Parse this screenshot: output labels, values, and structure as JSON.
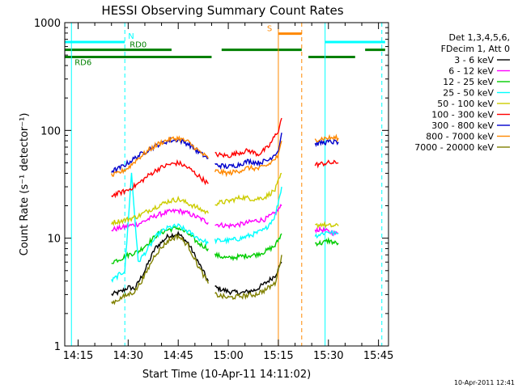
{
  "chart_data": {
    "type": "line",
    "title": "HESSI Observing Summary Count Rates",
    "xlabel": "Start Time (10-Apr-11 14:11:02)",
    "ylabel": "Count Rate (s⁻¹ detector⁻¹)",
    "x_scale": "time",
    "x_range": [
      "14:11",
      "15:48"
    ],
    "y_scale": "log",
    "ylim": [
      1,
      1000
    ],
    "x_ticks": [
      "14:15",
      "14:30",
      "14:45",
      "15:00",
      "15:15",
      "15:30",
      "15:45"
    ],
    "y_ticks": [
      "1",
      "10",
      "100",
      "1000"
    ],
    "timestamp": "10-Apr-2011 12:41",
    "legend": {
      "placement": "right",
      "header": [
        "Det 1,3,4,5,6,",
        "FDecim 1, Att 0"
      ]
    },
    "series": [
      {
        "name": "3 - 6 keV",
        "color": "#000000",
        "segments": [
          {
            "x": [
              "14:25",
              "14:28",
              "14:30",
              "14:32",
              "14:35",
              "14:38",
              "14:42",
              "14:45",
              "14:48",
              "14:51",
              "14:54"
            ],
            "y": [
              3,
              3.2,
              3.5,
              3.4,
              5,
              8,
              10.5,
              11,
              9,
              6,
              4
            ]
          },
          {
            "x": [
              "14:56",
              "15:00",
              "15:04",
              "15:08",
              "15:11",
              "15:14",
              "15:16"
            ],
            "y": [
              3.5,
              3.2,
              3.1,
              3.3,
              3.8,
              4.5,
              6
            ]
          }
        ]
      },
      {
        "name": "6 - 12 keV",
        "color": "#ff00ff",
        "segments": [
          {
            "x": [
              "14:25",
              "14:28",
              "14:30",
              "14:33",
              "14:36",
              "14:39",
              "14:42",
              "14:45",
              "14:48",
              "14:51",
              "14:54"
            ],
            "y": [
              12,
              12.5,
              13,
              13.5,
              15,
              16.5,
              17.5,
              18,
              17,
              15.5,
              14
            ]
          },
          {
            "x": [
              "14:56",
              "15:00",
              "15:04",
              "15:08",
              "15:11",
              "15:14",
              "15:16"
            ],
            "y": [
              13.5,
              13,
              13.5,
              14.5,
              15,
              17,
              20
            ]
          },
          {
            "x": [
              "15:26",
              "15:28",
              "15:30",
              "15:32",
              "15:33"
            ],
            "y": [
              12,
              12,
              11.5,
              11,
              11
            ]
          }
        ]
      },
      {
        "name": "12 - 25 keV",
        "color": "#00cc00",
        "segments": [
          {
            "x": [
              "14:25",
              "14:28",
              "14:30",
              "14:33",
              "14:36",
              "14:39",
              "14:42",
              "14:45",
              "14:48",
              "14:51",
              "14:54"
            ],
            "y": [
              6,
              6.5,
              7,
              7.5,
              9,
              11,
              12,
              12.5,
              11,
              9,
              8
            ]
          },
          {
            "x": [
              "14:56",
              "15:00",
              "15:04",
              "15:08",
              "15:11",
              "15:14",
              "15:16"
            ],
            "y": [
              7,
              6.5,
              6.8,
              7,
              7.5,
              8.5,
              11
            ]
          },
          {
            "x": [
              "15:26",
              "15:28",
              "15:30",
              "15:32",
              "15:33"
            ],
            "y": [
              9,
              9,
              9.5,
              9,
              9
            ]
          }
        ]
      },
      {
        "name": "25 - 50 keV",
        "color": "#00ffff",
        "segments": [
          {
            "x": [
              "14:25",
              "14:27",
              "14:29",
              "14:31",
              "14:33",
              "14:36",
              "14:39",
              "14:42",
              "14:45",
              "14:48",
              "14:51",
              "14:54"
            ],
            "y": [
              4,
              4.5,
              5,
              40,
              6,
              8,
              11,
              12.5,
              13,
              11.5,
              10,
              9
            ]
          },
          {
            "x": [
              "14:56",
              "15:00",
              "15:04",
              "15:08",
              "15:11",
              "15:14",
              "15:16"
            ],
            "y": [
              9.5,
              9.5,
              10,
              11,
              12,
              16,
              30
            ]
          },
          {
            "x": [
              "15:26",
              "15:28",
              "15:30",
              "15:32",
              "15:33"
            ],
            "y": [
              10.5,
              11,
              11.5,
              11,
              11
            ]
          }
        ]
      },
      {
        "name": "50 - 100 keV",
        "color": "#cccc00",
        "segments": [
          {
            "x": [
              "14:25",
              "14:28",
              "14:30",
              "14:33",
              "14:36",
              "14:39",
              "14:42",
              "14:45",
              "14:48",
              "14:51",
              "14:54"
            ],
            "y": [
              14,
              14.5,
              15,
              16,
              18,
              20,
              22,
              23,
              21,
              19,
              17
            ]
          },
          {
            "x": [
              "14:56",
              "15:00",
              "15:04",
              "15:08",
              "15:11",
              "15:14",
              "15:16"
            ],
            "y": [
              21,
              22,
              24,
              23,
              24,
              28,
              40
            ]
          },
          {
            "x": [
              "15:26",
              "15:28",
              "15:30",
              "15:32",
              "15:33"
            ],
            "y": [
              13,
              13.5,
              13,
              13,
              13
            ]
          }
        ]
      },
      {
        "name": "100 - 300 keV",
        "color": "#ff0000",
        "segments": [
          {
            "x": [
              "14:25",
              "14:27",
              "14:30",
              "14:33",
              "14:36",
              "14:39",
              "14:42",
              "14:45",
              "14:48",
              "14:51",
              "14:54"
            ],
            "y": [
              25,
              26,
              28,
              32,
              38,
              44,
              48,
              50,
              45,
              38,
              32
            ]
          },
          {
            "x": [
              "14:56",
              "15:00",
              "15:03",
              "15:06",
              "15:09",
              "15:12",
              "15:15",
              "15:16"
            ],
            "y": [
              60,
              58,
              62,
              65,
              60,
              70,
              100,
              130
            ]
          },
          {
            "x": [
              "15:26",
              "15:28",
              "15:30",
              "15:32",
              "15:33"
            ],
            "y": [
              48,
              49,
              50,
              50,
              50
            ]
          }
        ]
      },
      {
        "name": "300 - 800 keV",
        "color": "#0000cc",
        "segments": [
          {
            "x": [
              "14:25",
              "14:27",
              "14:30",
              "14:33",
              "14:36",
              "14:39",
              "14:42",
              "14:45",
              "14:48",
              "14:51",
              "14:54"
            ],
            "y": [
              42,
              44,
              50,
              58,
              66,
              74,
              80,
              82,
              75,
              63,
              55
            ]
          },
          {
            "x": [
              "14:56",
              "15:00",
              "15:03",
              "15:06",
              "15:09",
              "15:12",
              "15:15",
              "15:16"
            ],
            "y": [
              48,
              46,
              48,
              52,
              50,
              53,
              65,
              95
            ]
          },
          {
            "x": [
              "15:26",
              "15:28",
              "15:30",
              "15:32",
              "15:33"
            ],
            "y": [
              75,
              77,
              78,
              78,
              78
            ]
          }
        ]
      },
      {
        "name": "800 - 7000 keV",
        "color": "#ff8800",
        "segments": [
          {
            "x": [
              "14:25",
              "14:27",
              "14:30",
              "14:33",
              "14:36",
              "14:39",
              "14:42",
              "14:45",
              "14:48",
              "14:51",
              "14:54"
            ],
            "y": [
              38,
              40,
              45,
              55,
              65,
              75,
              82,
              85,
              78,
              65,
              55
            ]
          },
          {
            "x": [
              "14:56",
              "15:00",
              "15:03",
              "15:06",
              "15:09",
              "15:12",
              "15:15",
              "15:16"
            ],
            "y": [
              42,
              40,
              42,
              45,
              44,
              48,
              58,
              80
            ]
          },
          {
            "x": [
              "15:26",
              "15:28",
              "15:30",
              "15:32",
              "15:33"
            ],
            "y": [
              82,
              84,
              85,
              85,
              85
            ]
          }
        ]
      },
      {
        "name": "7000 - 20000 keV",
        "color": "#808000",
        "segments": [
          {
            "x": [
              "14:25",
              "14:28",
              "14:30",
              "14:32",
              "14:35",
              "14:38",
              "14:42",
              "14:45",
              "14:48",
              "14:51",
              "14:54"
            ],
            "y": [
              2.5,
              2.8,
              3,
              3.2,
              4.5,
              7,
              9.5,
              10.5,
              8.5,
              5.5,
              3.8
            ]
          },
          {
            "x": [
              "14:56",
              "15:00",
              "15:04",
              "15:08",
              "15:11",
              "15:14",
              "15:16"
            ],
            "y": [
              3,
              2.8,
              2.9,
              3,
              3.3,
              3.8,
              7
            ]
          }
        ]
      }
    ],
    "status_bars": [
      {
        "label": "N",
        "color": "#00ffff",
        "y": 660,
        "segments": [
          [
            "14:11",
            "14:29"
          ],
          [
            "15:29",
            "15:47"
          ]
        ]
      },
      {
        "label": "RD0",
        "color": "#008000",
        "y": 560,
        "segments": [
          [
            "14:11",
            "14:43"
          ],
          [
            "14:58",
            "15:22"
          ],
          [
            "15:41",
            "15:47"
          ]
        ]
      },
      {
        "label": "RD6",
        "color": "#008000",
        "y": 480,
        "segments": [
          [
            "14:11",
            "14:55"
          ],
          [
            "15:24",
            "15:38"
          ]
        ]
      },
      {
        "label": "S",
        "color": "#ff8800",
        "y": 790,
        "segments": [
          [
            "15:15",
            "15:22"
          ]
        ]
      }
    ],
    "vertical_markers": [
      {
        "x": "14:13",
        "color": "#00ffff",
        "style": "solid"
      },
      {
        "x": "14:29",
        "color": "#00ffff",
        "style": "dashed"
      },
      {
        "x": "15:29",
        "color": "#00ffff",
        "style": "solid"
      },
      {
        "x": "15:46",
        "color": "#00ffff",
        "style": "dashed"
      },
      {
        "x": "15:15",
        "color": "#ff8800",
        "style": "solid"
      },
      {
        "x": "15:22",
        "color": "#ff8800",
        "style": "dashed"
      }
    ]
  }
}
